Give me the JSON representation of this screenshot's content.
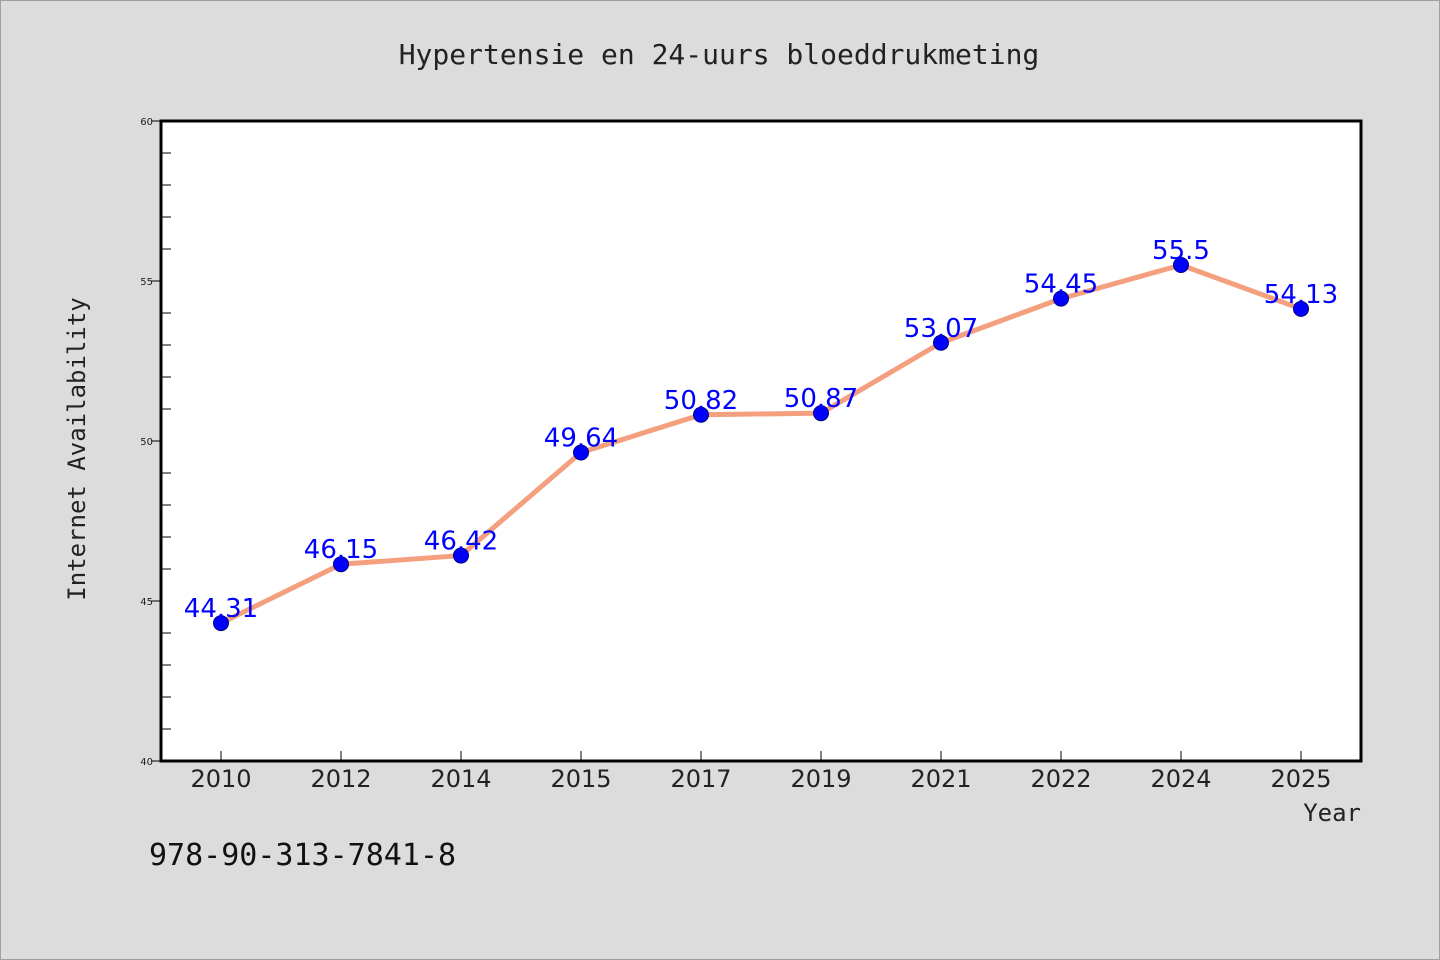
{
  "footer": {
    "isbn": "978-90-313-7841-8"
  },
  "colors": {
    "background": "#dcdcdc",
    "plot_background": "#ffffff",
    "line": "#f4a07e",
    "marker": "#0000ff",
    "data_label": "#0000ff"
  },
  "chart_data": {
    "type": "line",
    "title": "Hypertensie en 24-uurs bloeddrukmeting",
    "xlabel": "Year",
    "ylabel": "Internet Availability",
    "categories": [
      "2010",
      "2012",
      "2014",
      "2015",
      "2017",
      "2019",
      "2021",
      "2022",
      "2024",
      "2025"
    ],
    "series": [
      {
        "values": [
          44.31,
          46.15,
          46.42,
          49.64,
          50.82,
          50.87,
          53.07,
          54.45,
          55.5,
          54.13
        ],
        "labels": [
          "44.31",
          "46.15",
          "46.42",
          "49.64",
          "50.82",
          "50.87",
          "53.07",
          "54.45",
          "55.5",
          "54.13"
        ]
      }
    ],
    "ylim": [
      40,
      60
    ],
    "yticks": [
      "40",
      "45",
      "50",
      "55",
      "60"
    ],
    "grid": false,
    "legend": "none"
  }
}
